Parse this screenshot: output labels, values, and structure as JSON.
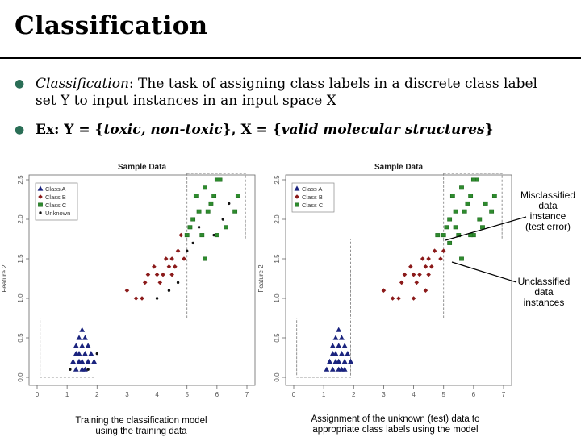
{
  "title": "Classification",
  "bullets": {
    "b1": {
      "lead": "Classification",
      "line1": ": The task of assigning class labels in a discrete class label",
      "line2": "set Y to input instances in an input space X"
    },
    "b2": {
      "ex": "Ex: Y = {",
      "y_vals": "toxic, non-toxic",
      "mid": "}, X = {",
      "x_vals": "valid molecular structures",
      "end": "}"
    }
  },
  "plots": {
    "left": {
      "title": "Sample Data",
      "xlabel": "Feature 1",
      "ylabel": "Feature 2",
      "caption": [
        "Training the classification model",
        "using the training data"
      ],
      "legend": [
        "Class A",
        "Class B",
        "Class C",
        "Unknown"
      ]
    },
    "right": {
      "title": "Sample Data",
      "xlabel": "Feature 1",
      "ylabel": "Feature 2",
      "caption": [
        "Assignment of the unknown (test) data to",
        "appropriate class labels using the model"
      ],
      "legend": [
        "Class A",
        "Class B",
        "Class C"
      ]
    }
  },
  "annotations": {
    "misclassified": [
      "Misclassified",
      "data",
      "instance",
      "(test error)"
    ],
    "unclassified": [
      "Unclassified",
      "data",
      "instances"
    ]
  },
  "chart_data": [
    {
      "type": "scatter",
      "title": "Sample Data",
      "xlabel": "Feature 1",
      "ylabel": "Feature 2",
      "xlim": [
        0,
        7
      ],
      "ylim": [
        0,
        2.5
      ],
      "x_ticks": [
        "0",
        "1",
        "2",
        "3",
        "4",
        "5",
        "6",
        "7"
      ],
      "y_ticks": [
        "0.0",
        "0.5",
        "1.0",
        "1.5",
        "2.0",
        "2.5"
      ],
      "colors": {
        "A": "#1a237e",
        "B": "#8b1a1a",
        "C": "#2e8b2e",
        "Unknown": "#111111"
      },
      "series": [
        {
          "name": "Class A",
          "points": [
            [
              1.5,
              0.6
            ],
            [
              1.4,
              0.5
            ],
            [
              1.6,
              0.5
            ],
            [
              1.3,
              0.4
            ],
            [
              1.5,
              0.4
            ],
            [
              1.7,
              0.4
            ],
            [
              1.3,
              0.3
            ],
            [
              1.4,
              0.3
            ],
            [
              1.6,
              0.3
            ],
            [
              1.8,
              0.3
            ],
            [
              1.2,
              0.2
            ],
            [
              1.4,
              0.2
            ],
            [
              1.5,
              0.2
            ],
            [
              1.7,
              0.2
            ],
            [
              1.9,
              0.2
            ],
            [
              1.3,
              0.1
            ],
            [
              1.5,
              0.1
            ],
            [
              1.6,
              0.1
            ]
          ]
        },
        {
          "name": "Class B",
          "points": [
            [
              3.0,
              1.1
            ],
            [
              3.3,
              1.0
            ],
            [
              3.5,
              1.0
            ],
            [
              3.6,
              1.2
            ],
            [
              3.7,
              1.3
            ],
            [
              3.9,
              1.4
            ],
            [
              4.0,
              1.3
            ],
            [
              4.1,
              1.2
            ],
            [
              4.2,
              1.3
            ],
            [
              4.3,
              1.5
            ],
            [
              4.4,
              1.4
            ],
            [
              4.5,
              1.5
            ],
            [
              4.5,
              1.3
            ],
            [
              4.6,
              1.4
            ],
            [
              4.7,
              1.6
            ],
            [
              4.8,
              1.8
            ],
            [
              4.9,
              1.5
            ]
          ]
        },
        {
          "name": "Class C",
          "points": [
            [
              5.0,
              1.8
            ],
            [
              5.1,
              1.9
            ],
            [
              5.2,
              2.0
            ],
            [
              5.3,
              2.3
            ],
            [
              5.4,
              2.1
            ],
            [
              5.5,
              1.8
            ],
            [
              5.6,
              2.4
            ],
            [
              5.7,
              2.1
            ],
            [
              5.8,
              2.2
            ],
            [
              5.9,
              2.3
            ],
            [
              6.0,
              1.8
            ],
            [
              6.1,
              2.5
            ],
            [
              6.3,
              1.9
            ],
            [
              6.6,
              2.1
            ],
            [
              6.7,
              2.3
            ],
            [
              5.6,
              1.5
            ],
            [
              6.0,
              2.5
            ]
          ]
        },
        {
          "name": "Unknown",
          "points": [
            [
              1.1,
              0.1
            ],
            [
              1.7,
              0.1
            ],
            [
              2.0,
              0.3
            ],
            [
              4.0,
              1.0
            ],
            [
              4.4,
              1.1
            ],
            [
              4.7,
              1.2
            ],
            [
              5.0,
              1.6
            ],
            [
              5.2,
              1.7
            ],
            [
              5.4,
              1.9
            ],
            [
              5.9,
              1.8
            ],
            [
              6.2,
              2.0
            ],
            [
              6.4,
              2.2
            ]
          ]
        }
      ],
      "legend_position": "top-left",
      "grid": false
    },
    {
      "type": "scatter",
      "title": "Sample Data",
      "xlabel": "Feature 1",
      "ylabel": "Feature 2",
      "xlim": [
        0,
        7
      ],
      "ylim": [
        0,
        2.5
      ],
      "x_ticks": [
        "0",
        "1",
        "2",
        "3",
        "4",
        "5",
        "6",
        "7"
      ],
      "y_ticks": [
        "0.0",
        "0.5",
        "1.0",
        "1.5",
        "2.0",
        "2.5"
      ],
      "colors": {
        "A": "#1a237e",
        "B": "#8b1a1a",
        "C": "#2e8b2e"
      },
      "series": [
        {
          "name": "Class A",
          "points": [
            [
              1.5,
              0.6
            ],
            [
              1.4,
              0.5
            ],
            [
              1.6,
              0.5
            ],
            [
              1.3,
              0.4
            ],
            [
              1.5,
              0.4
            ],
            [
              1.7,
              0.4
            ],
            [
              1.3,
              0.3
            ],
            [
              1.4,
              0.3
            ],
            [
              1.6,
              0.3
            ],
            [
              1.8,
              0.3
            ],
            [
              1.2,
              0.2
            ],
            [
              1.4,
              0.2
            ],
            [
              1.5,
              0.2
            ],
            [
              1.7,
              0.2
            ],
            [
              1.9,
              0.2
            ],
            [
              1.3,
              0.1
            ],
            [
              1.5,
              0.1
            ],
            [
              1.6,
              0.1
            ],
            [
              1.1,
              0.1
            ],
            [
              1.7,
              0.1
            ]
          ]
        },
        {
          "name": "Class B",
          "points": [
            [
              3.0,
              1.1
            ],
            [
              3.3,
              1.0
            ],
            [
              3.5,
              1.0
            ],
            [
              3.6,
              1.2
            ],
            [
              3.7,
              1.3
            ],
            [
              3.9,
              1.4
            ],
            [
              4.0,
              1.3
            ],
            [
              4.1,
              1.2
            ],
            [
              4.2,
              1.3
            ],
            [
              4.3,
              1.5
            ],
            [
              4.4,
              1.4
            ],
            [
              4.5,
              1.5
            ],
            [
              4.5,
              1.3
            ],
            [
              4.6,
              1.4
            ],
            [
              4.7,
              1.6
            ],
            [
              4.9,
              1.5
            ],
            [
              4.0,
              1.0
            ],
            [
              4.4,
              1.1
            ],
            [
              5.0,
              1.6
            ]
          ]
        },
        {
          "name": "Class C",
          "points": [
            [
              5.0,
              1.8
            ],
            [
              5.1,
              1.9
            ],
            [
              5.2,
              2.0
            ],
            [
              5.3,
              2.3
            ],
            [
              5.4,
              2.1
            ],
            [
              5.5,
              1.8
            ],
            [
              5.6,
              2.4
            ],
            [
              5.7,
              2.1
            ],
            [
              5.8,
              2.2
            ],
            [
              5.9,
              2.3
            ],
            [
              6.0,
              1.8
            ],
            [
              6.1,
              2.5
            ],
            [
              6.3,
              1.9
            ],
            [
              6.6,
              2.1
            ],
            [
              6.7,
              2.3
            ],
            [
              5.6,
              1.5
            ],
            [
              6.0,
              2.5
            ],
            [
              5.2,
              1.7
            ],
            [
              5.4,
              1.9
            ],
            [
              5.9,
              1.8
            ],
            [
              6.2,
              2.0
            ],
            [
              6.4,
              2.2
            ],
            [
              4.8,
              1.8
            ]
          ]
        }
      ],
      "legend_position": "top-left",
      "grid": false
    }
  ]
}
